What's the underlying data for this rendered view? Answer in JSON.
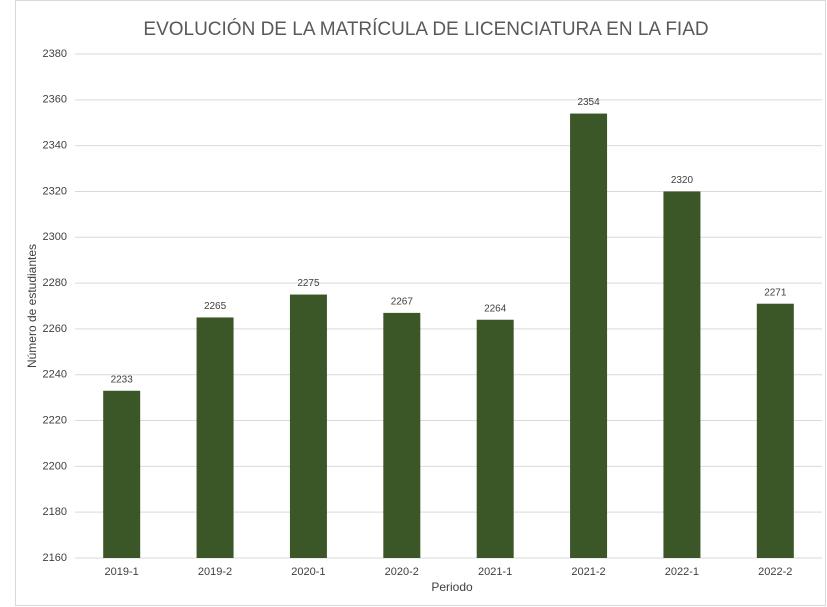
{
  "chart_data": {
    "type": "bar",
    "title": "EVOLUCIÓN DE LA MATRÍCULA DE LICENCIATURA EN LA FIAD",
    "x_label": "Periodo",
    "y_label": "Número de estudiantes",
    "categories": [
      "2019-1",
      "2019-2",
      "2020-1",
      "2020-2",
      "2021-1",
      "2021-2",
      "2022-1",
      "2022-2"
    ],
    "values": [
      2233,
      2265,
      2275,
      2267,
      2264,
      2354,
      2320,
      2271
    ],
    "color": "#3b5727",
    "ylim": [
      2160,
      2380
    ],
    "yticks": [
      2160,
      2180,
      2200,
      2220,
      2240,
      2260,
      2280,
      2300,
      2320,
      2340,
      2360,
      2380
    ],
    "grid": true
  }
}
